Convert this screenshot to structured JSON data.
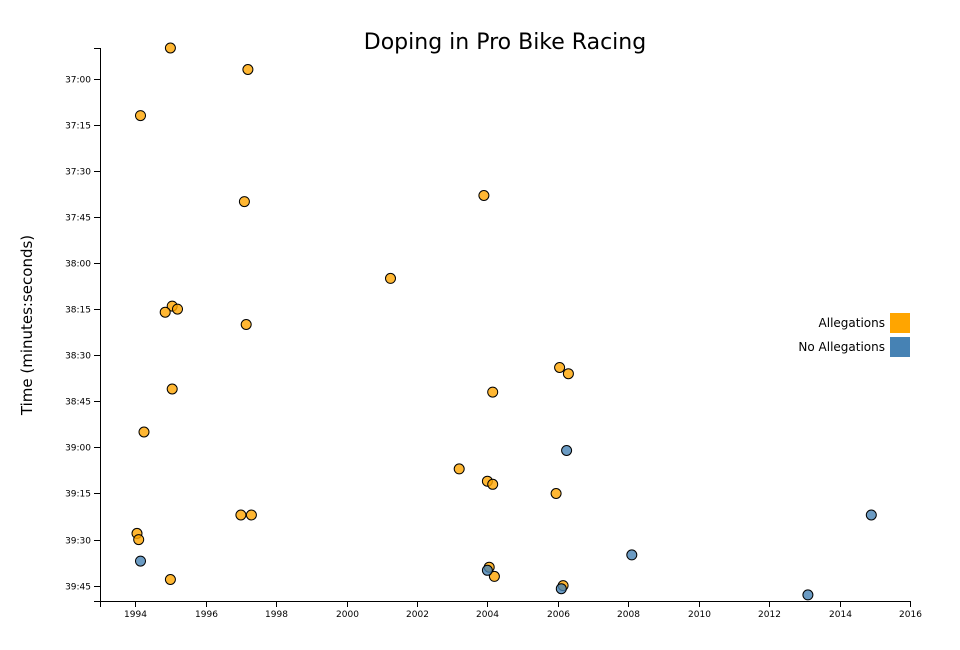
{
  "chart_data": {
    "type": "scatter",
    "title": "Doping in Pro Bike Racing",
    "ylabel": "Time (minutes:seconds)",
    "xlabel": "",
    "x_ticks": [
      "1994",
      "1996",
      "1998",
      "2000",
      "2002",
      "2004",
      "2006",
      "2008",
      "2010",
      "2012",
      "2014",
      "2016"
    ],
    "y_ticks": [
      "37:00",
      "37:15",
      "37:30",
      "37:45",
      "38:00",
      "38:15",
      "38:30",
      "38:45",
      "39:00",
      "39:15",
      "39:30",
      "39:45"
    ],
    "xlim": [
      1993.0,
      2016.0
    ],
    "ylim": [
      "36:50",
      "39:50"
    ],
    "y_reversed": true,
    "grid": false,
    "legend_position": "right",
    "legend": [
      {
        "label": "Allegations",
        "color": "#FFA500"
      },
      {
        "label": "No Allegations",
        "color": "#4682B4"
      }
    ],
    "series": [
      {
        "name": "Allegations",
        "color": "#FFA500",
        "points": [
          {
            "x": 1995.0,
            "y": "36:50"
          },
          {
            "x": 1997.2,
            "y": "36:57"
          },
          {
            "x": 1994.15,
            "y": "37:12"
          },
          {
            "x": 1997.1,
            "y": "37:40"
          },
          {
            "x": 2003.9,
            "y": "37:38"
          },
          {
            "x": 2001.25,
            "y": "38:05"
          },
          {
            "x": 1995.05,
            "y": "38:14"
          },
          {
            "x": 1995.2,
            "y": "38:15"
          },
          {
            "x": 1994.85,
            "y": "38:16"
          },
          {
            "x": 1997.15,
            "y": "38:20"
          },
          {
            "x": 2006.05,
            "y": "38:34"
          },
          {
            "x": 2006.3,
            "y": "38:36"
          },
          {
            "x": 1995.05,
            "y": "38:41"
          },
          {
            "x": 2004.15,
            "y": "38:42"
          },
          {
            "x": 1994.25,
            "y": "38:55"
          },
          {
            "x": 2003.2,
            "y": "39:07"
          },
          {
            "x": 2004.0,
            "y": "39:11"
          },
          {
            "x": 2004.15,
            "y": "39:12"
          },
          {
            "x": 2005.95,
            "y": "39:15"
          },
          {
            "x": 1997.0,
            "y": "39:22"
          },
          {
            "x": 1997.3,
            "y": "39:22"
          },
          {
            "x": 1994.05,
            "y": "39:28"
          },
          {
            "x": 1994.1,
            "y": "39:30"
          },
          {
            "x": 2004.05,
            "y": "39:39"
          },
          {
            "x": 2004.2,
            "y": "39:42"
          },
          {
            "x": 1995.0,
            "y": "39:43"
          },
          {
            "x": 2006.15,
            "y": "39:45"
          }
        ]
      },
      {
        "name": "No Allegations",
        "color": "#4682B4",
        "points": [
          {
            "x": 2006.25,
            "y": "39:01"
          },
          {
            "x": 2014.9,
            "y": "39:22"
          },
          {
            "x": 2008.1,
            "y": "39:35"
          },
          {
            "x": 1994.15,
            "y": "39:37"
          },
          {
            "x": 2004.0,
            "y": "39:40"
          },
          {
            "x": 2006.1,
            "y": "39:46"
          },
          {
            "x": 2013.1,
            "y": "39:48"
          }
        ]
      }
    ]
  }
}
